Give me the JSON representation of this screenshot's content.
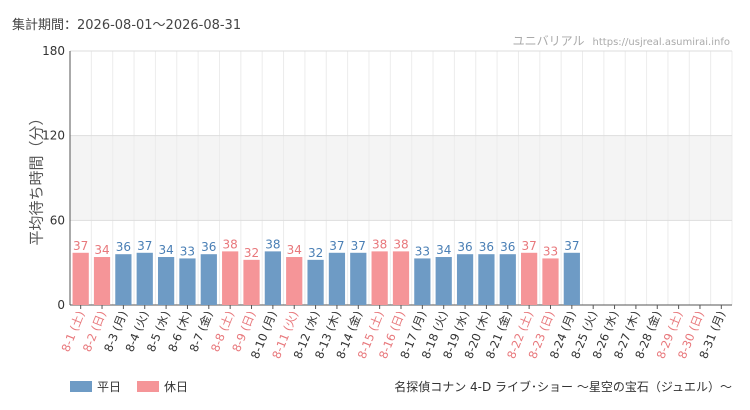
{
  "header": {
    "period_label": "集計期間：2026-08-01～2026-08-31",
    "site_name": "ユニバリアル",
    "site_url": "https://usjreal.asumirai.info"
  },
  "footer": {
    "attraction_title": "名探偵コナン 4-D ライブ･ショー ～星空の宝石（ジュエル）～"
  },
  "colors": {
    "weekday": "#6e9bc5",
    "holiday": "#f59598",
    "weekday_text": "#4a7fb5",
    "holiday_text": "#e8787c",
    "band": "#f4f4f4"
  },
  "chart_data": {
    "type": "bar",
    "ylabel": "平均待ち時間（分）",
    "ylim": [
      0,
      180
    ],
    "yticks": [
      "0",
      "60",
      "120",
      "180"
    ],
    "categories": [
      "8-1 (土)",
      "8-2 (日)",
      "8-3 (月)",
      "8-4 (火)",
      "8-5 (水)",
      "8-6 (木)",
      "8-7 (金)",
      "8-8 (土)",
      "8-9 (日)",
      "8-10 (月)",
      "8-11 (火)",
      "8-12 (水)",
      "8-13 (木)",
      "8-14 (金)",
      "8-15 (土)",
      "8-16 (日)",
      "8-17 (月)",
      "8-18 (火)",
      "8-19 (水)",
      "8-20 (木)",
      "8-21 (金)",
      "8-22 (土)",
      "8-23 (日)",
      "8-24 (月)",
      "8-25 (火)",
      "8-26 (水)",
      "8-27 (木)",
      "8-28 (金)",
      "8-29 (土)",
      "8-30 (日)",
      "8-31 (月)"
    ],
    "values": [
      37,
      34,
      36,
      37,
      34,
      33,
      36,
      38,
      32,
      38,
      34,
      32,
      37,
      37,
      38,
      38,
      33,
      34,
      36,
      36,
      36,
      37,
      33,
      37,
      null,
      null,
      null,
      null,
      null,
      null,
      null
    ],
    "day_type": [
      "holiday",
      "holiday",
      "weekday",
      "weekday",
      "weekday",
      "weekday",
      "weekday",
      "holiday",
      "holiday",
      "weekday",
      "holiday",
      "weekday",
      "weekday",
      "weekday",
      "holiday",
      "holiday",
      "weekday",
      "weekday",
      "weekday",
      "weekday",
      "weekday",
      "holiday",
      "holiday",
      "weekday",
      "weekday",
      "weekday",
      "weekday",
      "weekday",
      "holiday",
      "holiday",
      "weekday"
    ],
    "legend": [
      {
        "key": "weekday",
        "label": "平日"
      },
      {
        "key": "holiday",
        "label": "休日"
      }
    ],
    "grid": true
  }
}
